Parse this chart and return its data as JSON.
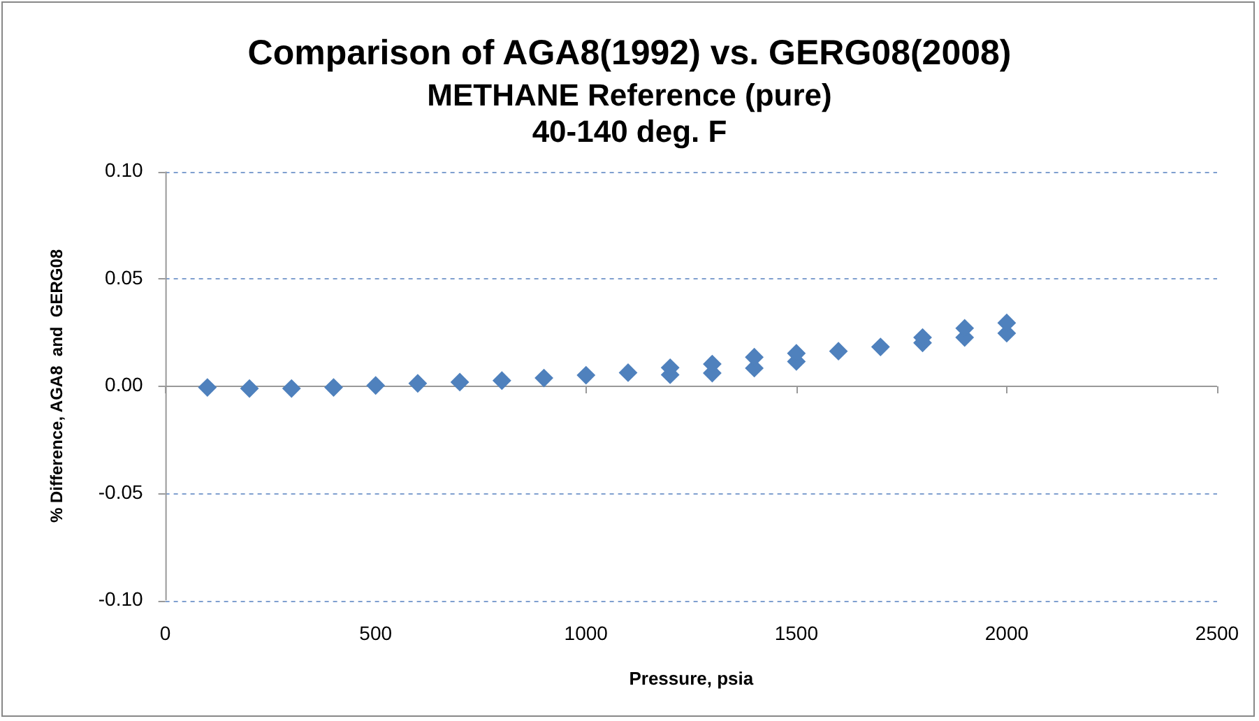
{
  "chart_data": {
    "type": "scatter",
    "title": "Comparison of AGA8(1992) vs. GERG08(2008)",
    "subtitle": [
      "METHANE Reference (pure)",
      "40-140 deg. F"
    ],
    "xlabel": "Pressure, psia",
    "ylabel": "% Difference, AGA8  and  GERG08",
    "x": [
      100,
      200,
      300,
      400,
      500,
      600,
      700,
      800,
      900,
      1000,
      1100,
      1200,
      1200,
      1300,
      1300,
      1400,
      1400,
      1500,
      1500,
      1600,
      1700,
      1800,
      1800,
      1900,
      1900,
      2000,
      2000
    ],
    "series": [
      {
        "color": "#4f81bd",
        "values": [
          -0.0007,
          -0.0012,
          -0.0012,
          -0.0007,
          0.0002,
          0.0012,
          0.0018,
          0.0025,
          0.0037,
          0.005,
          0.0062,
          0.0052,
          0.0085,
          0.006,
          0.0102,
          0.0083,
          0.0134,
          0.0114,
          0.0152,
          0.0162,
          0.0182,
          0.0201,
          0.0226,
          0.0226,
          0.0269,
          0.0246,
          0.0294
        ]
      }
    ],
    "xlim": [
      0,
      2500
    ],
    "xticks": [
      0,
      500,
      1000,
      1500,
      2000,
      2500
    ],
    "ylim": [
      -0.1,
      0.1
    ],
    "yticks": [
      {
        "value": -0.1,
        "label": "-0.10"
      },
      {
        "value": -0.05,
        "label": "-0.05"
      },
      {
        "value": 0,
        "label": "0.00"
      },
      {
        "value": 0.05,
        "label": "0.05"
      },
      {
        "value": 0.1,
        "label": "0.10"
      }
    ],
    "grid": "y",
    "legend": false,
    "marker": "diamond"
  }
}
